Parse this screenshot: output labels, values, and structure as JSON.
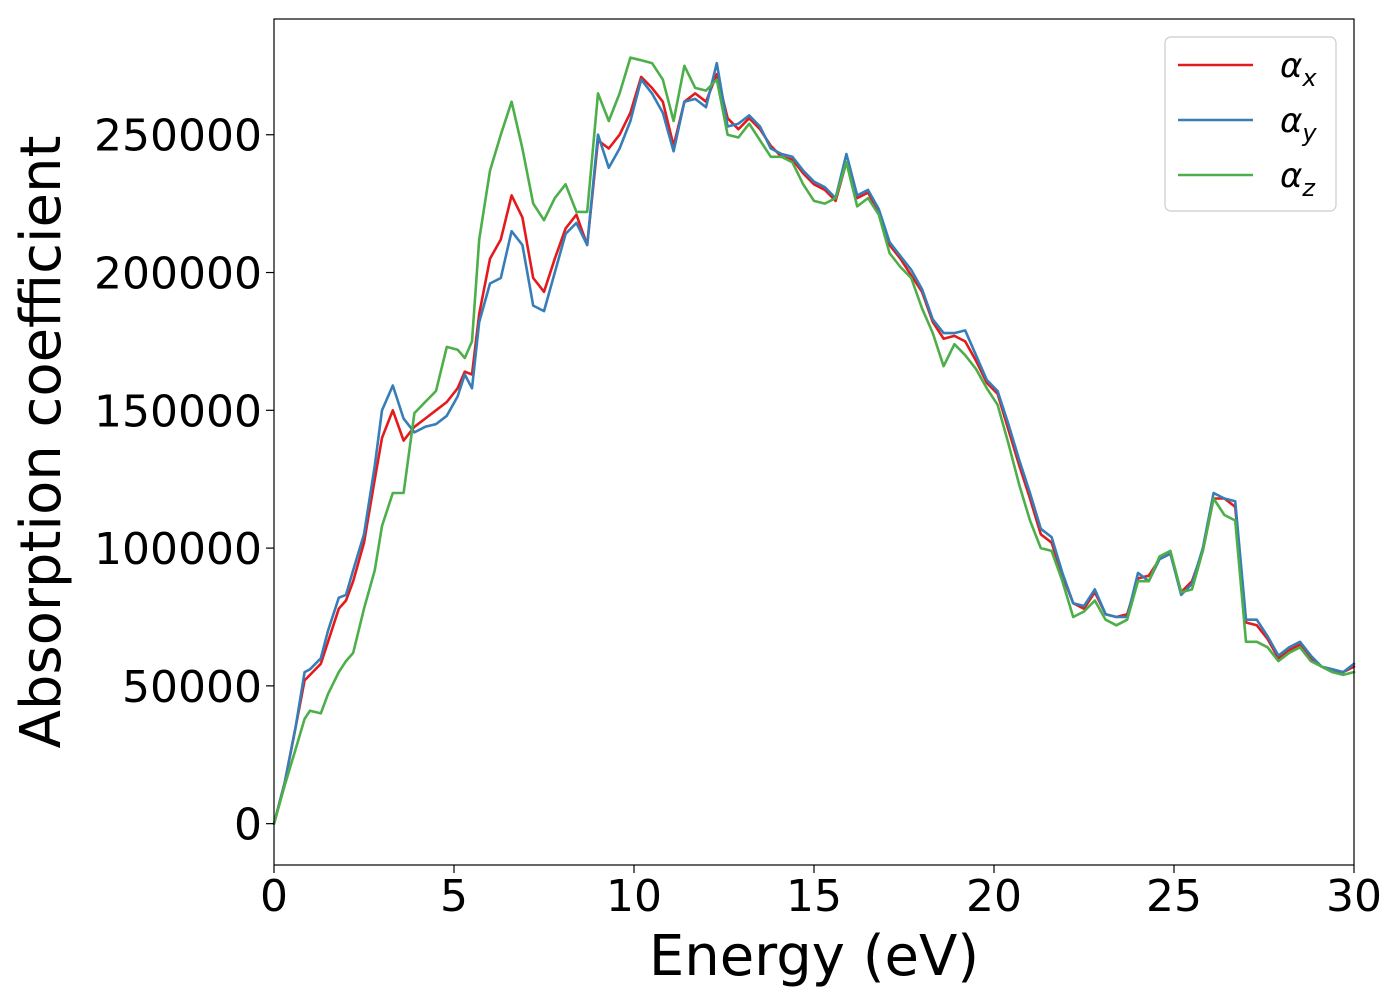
{
  "chart_data": {
    "type": "line",
    "title": "",
    "xlabel": "Energy (eV)",
    "ylabel": "Absorption coefficient",
    "xlim": [
      0,
      30
    ],
    "ylim": [
      -15000,
      292000
    ],
    "xticks": [
      0,
      5,
      10,
      15,
      20,
      25,
      30
    ],
    "yticks": [
      0,
      50000,
      100000,
      150000,
      200000,
      250000
    ],
    "grid": false,
    "legend_position": "top-right",
    "series": [
      {
        "name": "α",
        "subscript": "x",
        "color": "#e41a1c",
        "x": [
          0,
          0.3,
          0.6,
          0.85,
          1.0,
          1.3,
          1.5,
          1.8,
          2.0,
          2.2,
          2.5,
          2.8,
          3.0,
          3.3,
          3.6,
          3.9,
          4.2,
          4.5,
          4.8,
          5.1,
          5.3,
          5.5,
          5.7,
          6.0,
          6.3,
          6.6,
          6.9,
          7.2,
          7.5,
          7.8,
          8.1,
          8.4,
          8.7,
          9.0,
          9.3,
          9.6,
          9.9,
          10.2,
          10.5,
          10.8,
          11.1,
          11.4,
          11.7,
          12.0,
          12.3,
          12.6,
          12.9,
          13.2,
          13.5,
          13.8,
          14.1,
          14.4,
          14.7,
          15.0,
          15.3,
          15.6,
          15.9,
          16.2,
          16.5,
          16.8,
          17.1,
          17.4,
          17.7,
          18.0,
          18.3,
          18.6,
          18.9,
          19.2,
          19.5,
          19.8,
          20.1,
          20.4,
          20.7,
          21.0,
          21.3,
          21.6,
          21.9,
          22.2,
          22.5,
          22.8,
          23.1,
          23.4,
          23.7,
          24.0,
          24.3,
          24.6,
          24.9,
          25.2,
          25.5,
          25.8,
          26.1,
          26.4,
          26.7,
          27.0,
          27.3,
          27.6,
          27.9,
          28.2,
          28.5,
          28.8,
          29.1,
          29.4,
          29.7,
          30.0
        ],
        "values": [
          0,
          15000,
          35000,
          52000,
          54000,
          58000,
          66000,
          78000,
          81000,
          88000,
          102000,
          125000,
          140000,
          150000,
          139000,
          144000,
          147000,
          150000,
          153000,
          158000,
          164000,
          163000,
          185000,
          205000,
          212000,
          228000,
          220000,
          198000,
          193000,
          205000,
          216000,
          221000,
          210000,
          248000,
          245000,
          250000,
          258000,
          271000,
          267000,
          262000,
          246000,
          262000,
          265000,
          262000,
          272000,
          256000,
          252000,
          256000,
          252000,
          246000,
          242000,
          241000,
          236000,
          232000,
          230000,
          226000,
          240000,
          227000,
          229000,
          222000,
          210000,
          205000,
          199000,
          193000,
          182000,
          176000,
          177000,
          175000,
          168000,
          160000,
          156000,
          143000,
          130000,
          118000,
          105000,
          102000,
          90000,
          80000,
          78000,
          84000,
          76000,
          75000,
          76000,
          89000,
          90000,
          96000,
          98000,
          84000,
          88000,
          99000,
          118000,
          118000,
          115000,
          73000,
          72000,
          67000,
          60000,
          63000,
          65000,
          60000,
          57000,
          55000,
          55000,
          57000
        ]
      },
      {
        "name": "α",
        "subscript": "y",
        "color": "#377eb8",
        "x": [
          0,
          0.3,
          0.6,
          0.85,
          1.0,
          1.3,
          1.5,
          1.8,
          2.0,
          2.2,
          2.5,
          2.8,
          3.0,
          3.3,
          3.6,
          3.9,
          4.2,
          4.5,
          4.8,
          5.1,
          5.3,
          5.5,
          5.7,
          6.0,
          6.3,
          6.6,
          6.9,
          7.2,
          7.5,
          7.8,
          8.1,
          8.4,
          8.7,
          9.0,
          9.3,
          9.6,
          9.9,
          10.2,
          10.5,
          10.8,
          11.1,
          11.4,
          11.7,
          12.0,
          12.3,
          12.6,
          12.9,
          13.2,
          13.5,
          13.8,
          14.1,
          14.4,
          14.7,
          15.0,
          15.3,
          15.6,
          15.9,
          16.2,
          16.5,
          16.8,
          17.1,
          17.4,
          17.7,
          18.0,
          18.3,
          18.6,
          18.9,
          19.2,
          19.5,
          19.8,
          20.1,
          20.4,
          20.7,
          21.0,
          21.3,
          21.6,
          21.9,
          22.2,
          22.5,
          22.8,
          23.1,
          23.4,
          23.7,
          24.0,
          24.3,
          24.6,
          24.9,
          25.2,
          25.5,
          25.8,
          26.1,
          26.4,
          26.7,
          27.0,
          27.3,
          27.6,
          27.9,
          28.2,
          28.5,
          28.8,
          29.1,
          29.4,
          29.7,
          30.0
        ],
        "values": [
          0,
          15000,
          35000,
          55000,
          56000,
          60000,
          70000,
          82000,
          83000,
          92000,
          105000,
          130000,
          150000,
          159000,
          147000,
          142000,
          144000,
          145000,
          148000,
          155000,
          163000,
          158000,
          182000,
          196000,
          198000,
          215000,
          210000,
          188000,
          186000,
          200000,
          214000,
          218000,
          210000,
          250000,
          238000,
          245000,
          255000,
          270000,
          265000,
          258000,
          244000,
          262000,
          263000,
          260000,
          276000,
          253000,
          254000,
          257000,
          253000,
          245000,
          243000,
          242000,
          237000,
          233000,
          231000,
          227000,
          243000,
          228000,
          230000,
          223000,
          211000,
          206000,
          201000,
          194000,
          183000,
          178000,
          178000,
          179000,
          170000,
          161000,
          157000,
          145000,
          132000,
          120000,
          107000,
          104000,
          91000,
          80000,
          79000,
          85000,
          76000,
          75000,
          75000,
          91000,
          88000,
          96000,
          98000,
          83000,
          87000,
          100000,
          120000,
          118000,
          117000,
          74000,
          74000,
          68000,
          61000,
          64000,
          66000,
          61000,
          57000,
          56000,
          55000,
          58000
        ]
      },
      {
        "name": "α",
        "subscript": "z",
        "color": "#4daf4a",
        "x": [
          0,
          0.3,
          0.6,
          0.85,
          1.0,
          1.3,
          1.5,
          1.8,
          2.0,
          2.2,
          2.5,
          2.8,
          3.0,
          3.3,
          3.6,
          3.9,
          4.2,
          4.5,
          4.8,
          5.1,
          5.3,
          5.5,
          5.7,
          6.0,
          6.3,
          6.6,
          6.9,
          7.2,
          7.5,
          7.8,
          8.1,
          8.4,
          8.7,
          9.0,
          9.3,
          9.6,
          9.9,
          10.2,
          10.5,
          10.8,
          11.1,
          11.4,
          11.7,
          12.0,
          12.3,
          12.6,
          12.9,
          13.2,
          13.5,
          13.8,
          14.1,
          14.4,
          14.7,
          15.0,
          15.3,
          15.6,
          15.9,
          16.2,
          16.5,
          16.8,
          17.1,
          17.4,
          17.7,
          18.0,
          18.3,
          18.6,
          18.9,
          19.2,
          19.5,
          19.8,
          20.1,
          20.4,
          20.7,
          21.0,
          21.3,
          21.6,
          21.9,
          22.2,
          22.5,
          22.8,
          23.1,
          23.4,
          23.7,
          24.0,
          24.3,
          24.6,
          24.9,
          25.2,
          25.5,
          25.8,
          26.1,
          26.4,
          26.7,
          27.0,
          27.3,
          27.6,
          27.9,
          28.2,
          28.5,
          28.8,
          29.1,
          29.4,
          29.7,
          30.0
        ],
        "values": [
          0,
          14000,
          27000,
          38000,
          41000,
          40000,
          47000,
          55000,
          59000,
          62000,
          78000,
          92000,
          108000,
          120000,
          120000,
          149000,
          153000,
          157000,
          173000,
          172000,
          169000,
          175000,
          212000,
          237000,
          250000,
          262000,
          245000,
          225000,
          219000,
          227000,
          232000,
          222000,
          222000,
          265000,
          255000,
          265000,
          278000,
          277000,
          276000,
          270000,
          255000,
          275000,
          267000,
          266000,
          270000,
          250000,
          249000,
          254000,
          248000,
          242000,
          242000,
          240000,
          232000,
          226000,
          225000,
          227000,
          240000,
          224000,
          227000,
          221000,
          207000,
          202000,
          198000,
          187000,
          178000,
          166000,
          174000,
          170000,
          165000,
          158000,
          152000,
          138000,
          123000,
          110000,
          100000,
          99000,
          88000,
          75000,
          77000,
          81000,
          74000,
          72000,
          74000,
          88000,
          88000,
          97000,
          99000,
          84000,
          85000,
          99000,
          118000,
          112000,
          110000,
          66000,
          66000,
          64000,
          59000,
          62000,
          64000,
          59000,
          57000,
          55000,
          54000,
          55000
        ]
      }
    ]
  }
}
